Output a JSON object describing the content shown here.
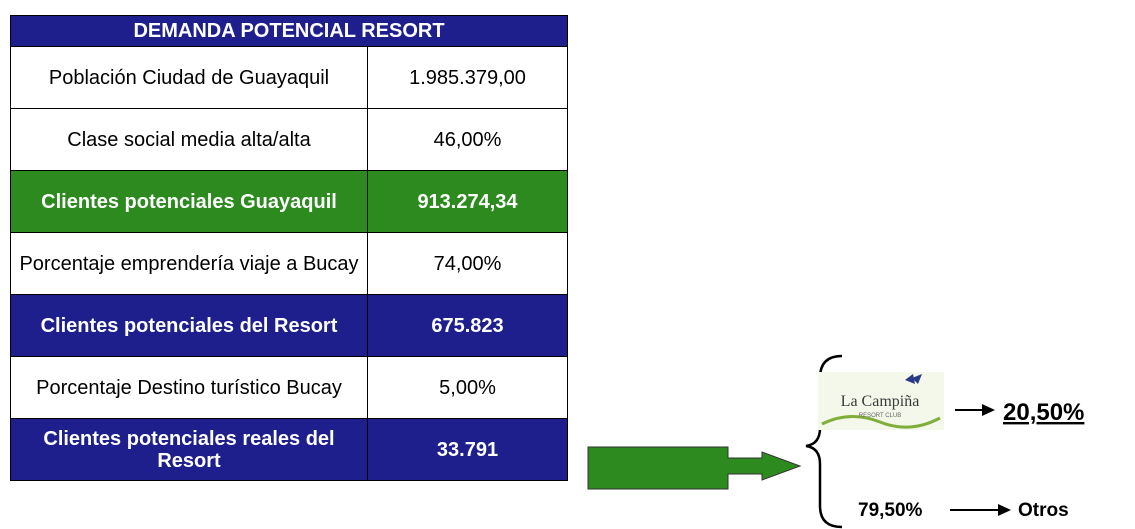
{
  "table": {
    "header": "DEMANDA POTENCIAL RESORT",
    "rows": [
      [
        "Población Ciudad de Guayaquil",
        "1.985.379,00"
      ],
      [
        "Clase social media alta/alta",
        "46,00%"
      ],
      [
        "Clientes potenciales Guayaquil",
        "913.274,34"
      ],
      [
        "Porcentaje emprendería viaje a Bucay",
        "74,00%"
      ],
      [
        "Clientes potenciales del Resort",
        "675.823"
      ],
      [
        "Porcentaje Destino turístico Bucay",
        "5,00%"
      ],
      [
        "Clientes potenciales reales del Resort",
        "33.791"
      ]
    ]
  },
  "callout": {
    "logo": "La Campiña",
    "logo_sub": "RESORT CLUB",
    "share": "20,50%",
    "other_share": "79,50%",
    "other_label": "Otros"
  }
}
